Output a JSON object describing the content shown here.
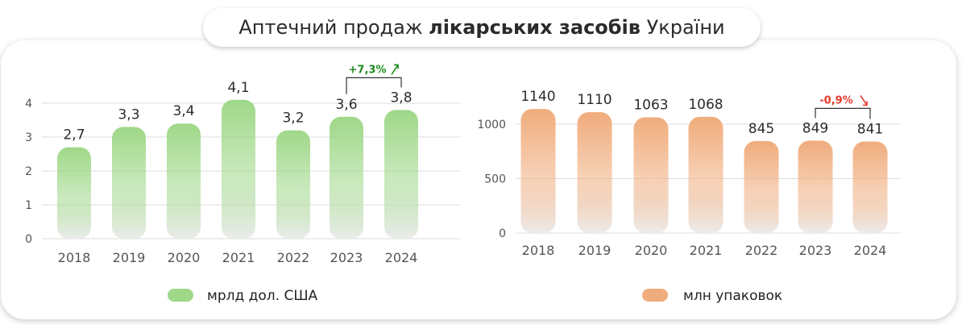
{
  "title": {
    "part1": "Аптечний продаж ",
    "part2": "лікарських засобів",
    "part3": " України"
  },
  "colors": {
    "green": "#9fd889",
    "orange": "#f0ac7c",
    "up": "#1e8c1e",
    "down": "#e53a2a",
    "axis_text": "#555555",
    "value_text": "#2b2b2b"
  },
  "chart_data": [
    {
      "type": "bar",
      "categories": [
        "2018",
        "2019",
        "2020",
        "2021",
        "2022",
        "2023",
        "2024"
      ],
      "values": [
        2.7,
        3.3,
        3.4,
        4.1,
        3.2,
        3.6,
        3.8
      ],
      "value_labels": [
        "2,7",
        "3,3",
        "3,4",
        "4,1",
        "3,2",
        "3,6",
        "3,8"
      ],
      "yticks": [
        0,
        1,
        2,
        3,
        4
      ],
      "ylim": [
        0,
        4.3
      ],
      "grid": true,
      "legend": "мрлд дол. США",
      "legend_position": "bottom",
      "color": "#9fd889",
      "annotation": {
        "text": "+7,3%",
        "arrow": "up",
        "from": "2023",
        "to": "2024"
      }
    },
    {
      "type": "bar",
      "categories": [
        "2018",
        "2019",
        "2020",
        "2021",
        "2022",
        "2023",
        "2024"
      ],
      "values": [
        1140,
        1110,
        1063,
        1068,
        845,
        849,
        841
      ],
      "value_labels": [
        "1140",
        "1110",
        "1063",
        "1068",
        "845",
        "849",
        "841"
      ],
      "yticks": [
        0,
        500,
        1000
      ],
      "ylim": [
        0,
        1260
      ],
      "grid": true,
      "legend": "млн упаковок",
      "legend_position": "bottom",
      "color": "#f0ac7c",
      "annotation": {
        "text": "-0,9%",
        "arrow": "down",
        "from": "2023",
        "to": "2024"
      }
    }
  ]
}
